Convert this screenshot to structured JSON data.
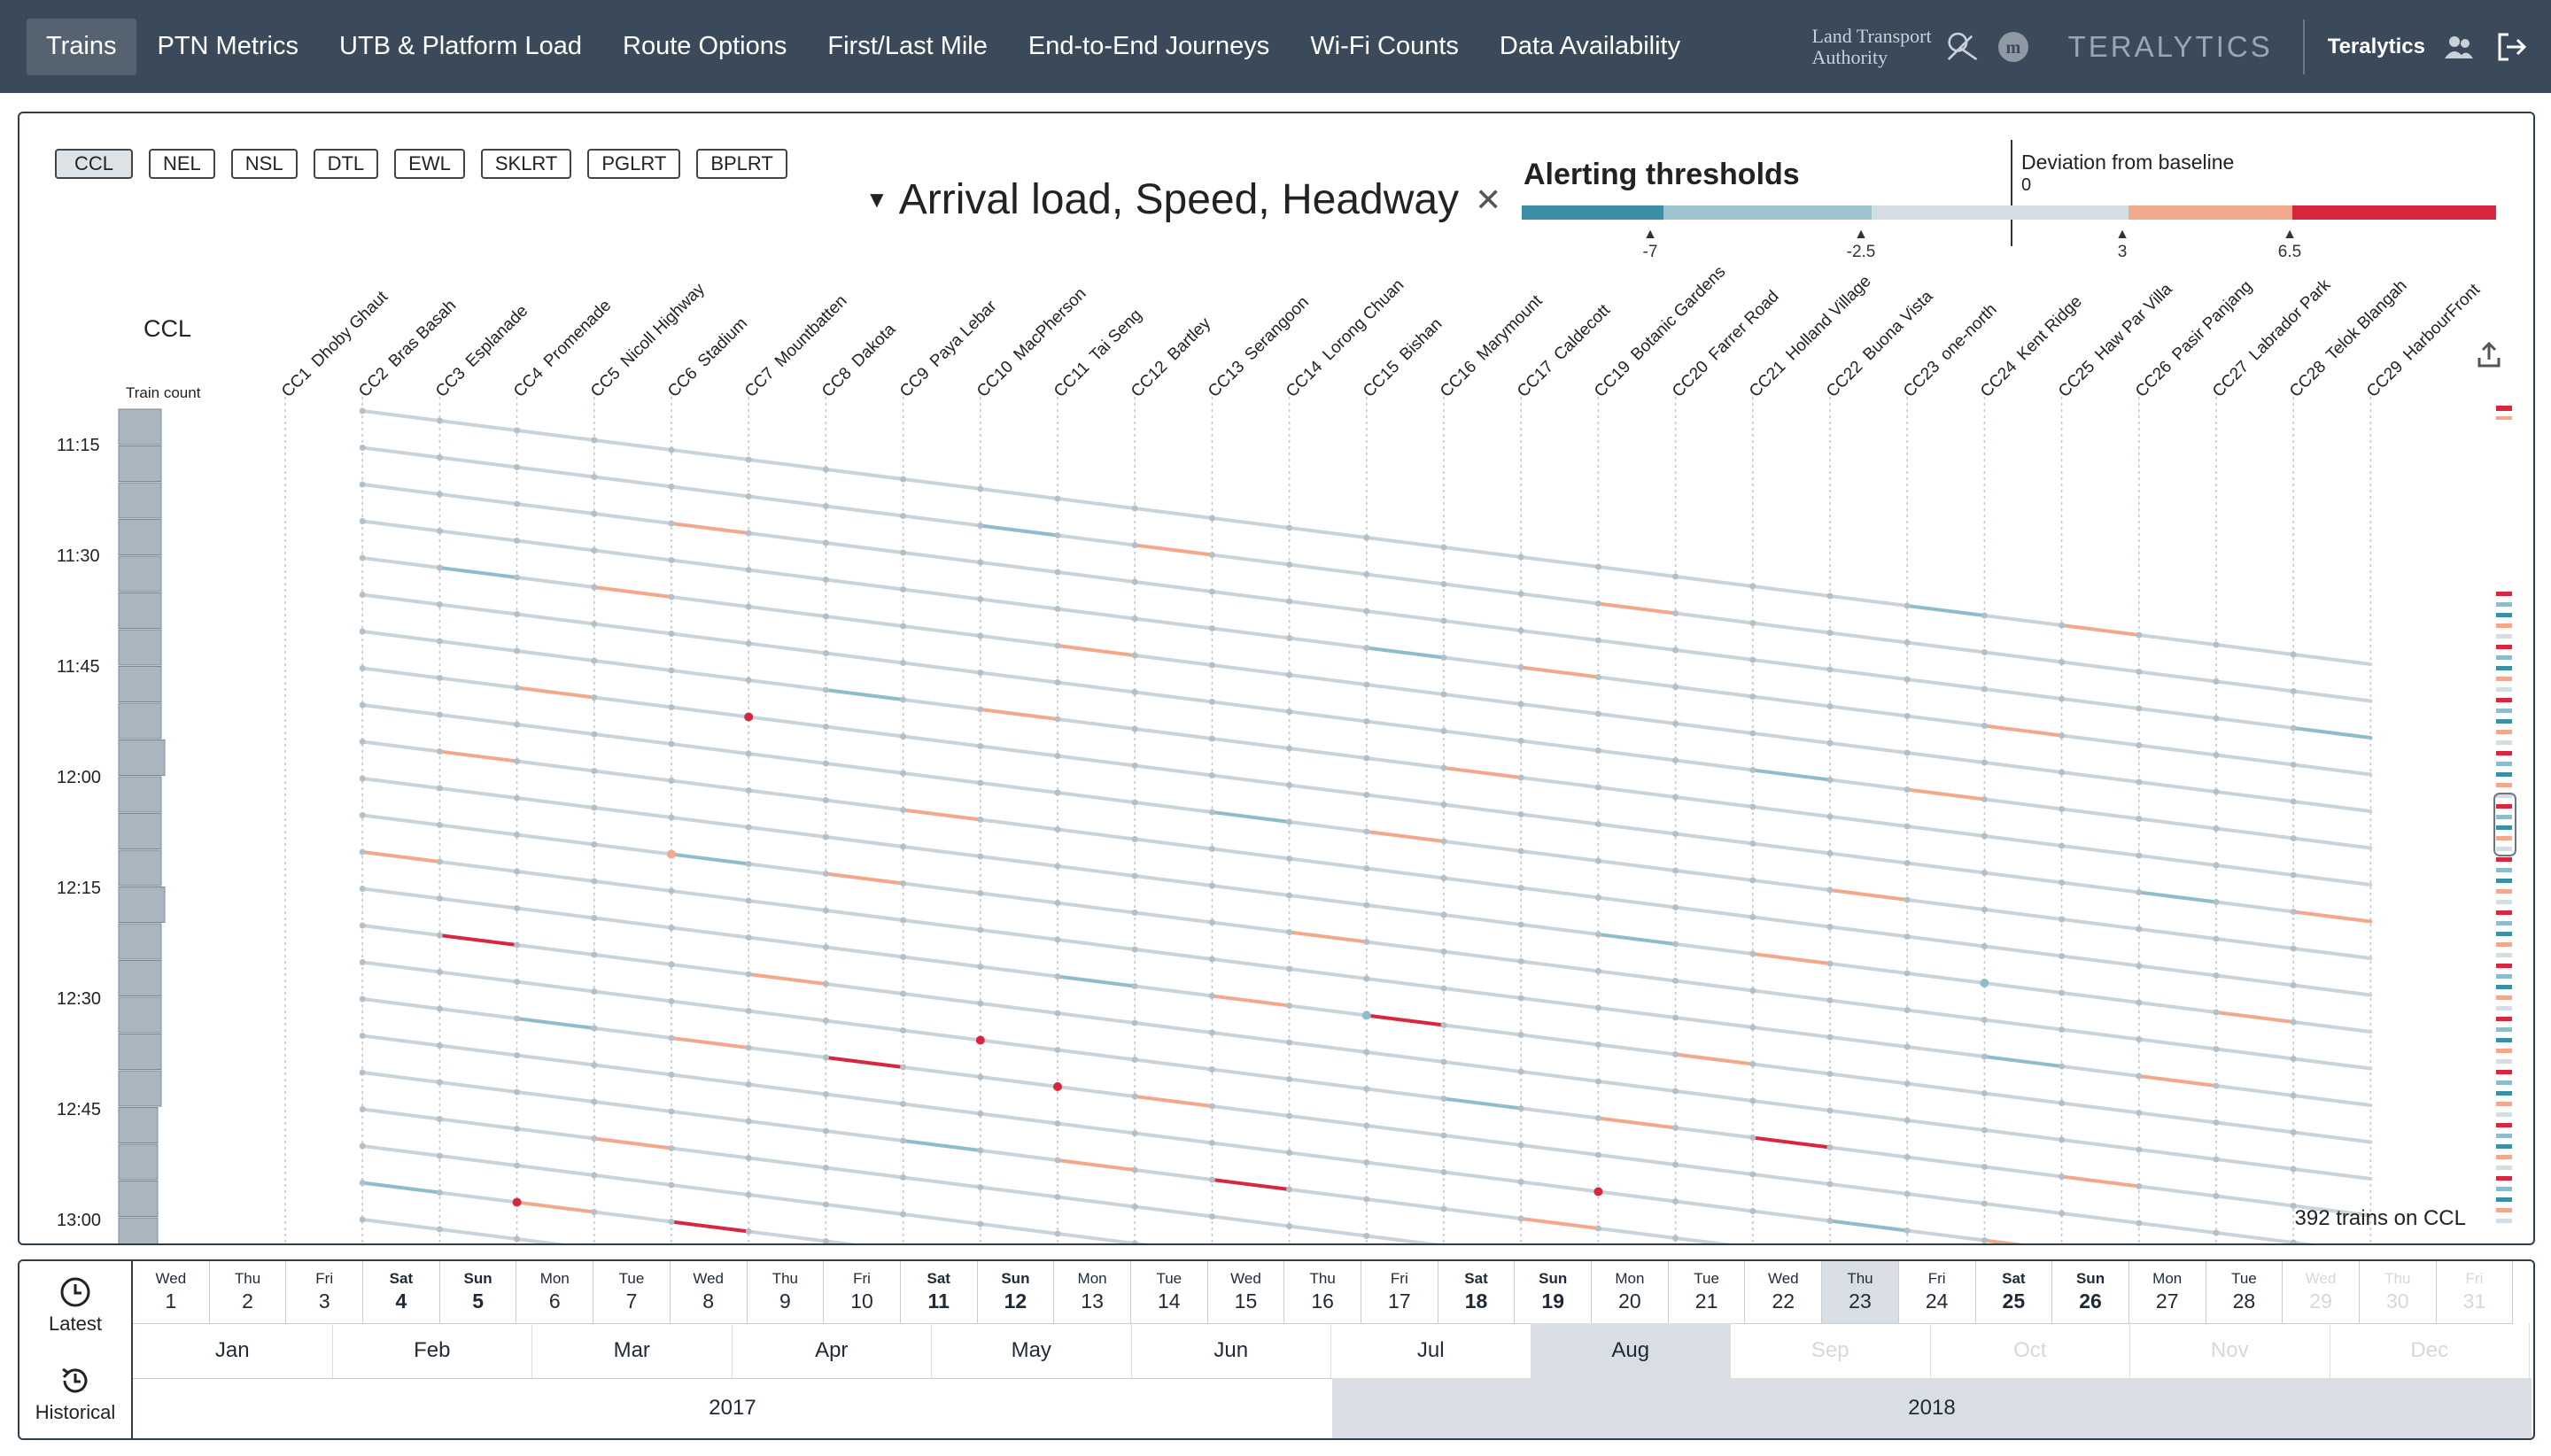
{
  "nav": {
    "tabs": [
      "Trains",
      "PTN Metrics",
      "UTB & Platform Load",
      "Route Options",
      "First/Last Mile",
      "End-to-End Journeys",
      "Wi-Fi Counts",
      "Data Availability"
    ],
    "active_tab": "Trains",
    "lta_line1": "Land Transport",
    "lta_line2": "Authority",
    "brand": "TERALYTICS",
    "user": "Teralytics"
  },
  "lines": [
    "CCL",
    "NEL",
    "NSL",
    "DTL",
    "EWL",
    "SKLRT",
    "PGLRT",
    "BPLRT"
  ],
  "active_line": "CCL",
  "metric": "Arrival load, Speed, Headway",
  "alerting": {
    "title": "Alerting thresholds",
    "deviation_title": "Deviation from baseline",
    "zero": "0",
    "marks": [
      "-7",
      "-2.5",
      "3",
      "6.5"
    ],
    "colors": [
      "#3a8ea8",
      "#9ec3cf",
      "#d5dde3",
      "#f2a88a",
      "#d7263d"
    ]
  },
  "chart": {
    "line_label": "CCL",
    "train_count_label": "Train count",
    "time_labels": [
      "11:15",
      "11:30",
      "11:45",
      "12:00",
      "12:15",
      "12:30",
      "12:45",
      "13:00"
    ],
    "stations": [
      {
        "code": "CC1",
        "name": "Dhoby Ghaut"
      },
      {
        "code": "CC2",
        "name": "Bras Basah"
      },
      {
        "code": "CC3",
        "name": "Esplanade"
      },
      {
        "code": "CC4",
        "name": "Promenade"
      },
      {
        "code": "CC5",
        "name": "Nicoll Highway"
      },
      {
        "code": "CC6",
        "name": "Stadium"
      },
      {
        "code": "CC7",
        "name": "Mountbatten"
      },
      {
        "code": "CC8",
        "name": "Dakota"
      },
      {
        "code": "CC9",
        "name": "Paya Lebar"
      },
      {
        "code": "CC10",
        "name": "MacPherson"
      },
      {
        "code": "CC11",
        "name": "Tai Seng"
      },
      {
        "code": "CC12",
        "name": "Bartley"
      },
      {
        "code": "CC13",
        "name": "Serangoon"
      },
      {
        "code": "CC14",
        "name": "Lorong Chuan"
      },
      {
        "code": "CC15",
        "name": "Bishan"
      },
      {
        "code": "CC16",
        "name": "Marymount"
      },
      {
        "code": "CC17",
        "name": "Caldecott"
      },
      {
        "code": "CC19",
        "name": "Botanic Gardens"
      },
      {
        "code": "CC20",
        "name": "Farrer Road"
      },
      {
        "code": "CC21",
        "name": "Holland Village"
      },
      {
        "code": "CC22",
        "name": "Buona Vista"
      },
      {
        "code": "CC23",
        "name": "one-north"
      },
      {
        "code": "CC24",
        "name": "Kent Ridge"
      },
      {
        "code": "CC25",
        "name": "Haw Par Villa"
      },
      {
        "code": "CC26",
        "name": "Pasir Panjang"
      },
      {
        "code": "CC27",
        "name": "Labrador Park"
      },
      {
        "code": "CC28",
        "name": "Telok Blangah"
      },
      {
        "code": "CC29",
        "name": "HarbourFront"
      }
    ],
    "trains_count_text": "392 trains on CCL"
  },
  "timeline": {
    "latest": "Latest",
    "historical": "Historical",
    "days": [
      {
        "w": "Wed",
        "n": "1"
      },
      {
        "w": "Thu",
        "n": "2"
      },
      {
        "w": "Fri",
        "n": "3"
      },
      {
        "w": "Sat",
        "n": "4"
      },
      {
        "w": "Sun",
        "n": "5"
      },
      {
        "w": "Mon",
        "n": "6"
      },
      {
        "w": "Tue",
        "n": "7"
      },
      {
        "w": "Wed",
        "n": "8"
      },
      {
        "w": "Thu",
        "n": "9"
      },
      {
        "w": "Fri",
        "n": "10"
      },
      {
        "w": "Sat",
        "n": "11"
      },
      {
        "w": "Sun",
        "n": "12"
      },
      {
        "w": "Mon",
        "n": "13"
      },
      {
        "w": "Tue",
        "n": "14"
      },
      {
        "w": "Wed",
        "n": "15"
      },
      {
        "w": "Thu",
        "n": "16"
      },
      {
        "w": "Fri",
        "n": "17"
      },
      {
        "w": "Sat",
        "n": "18"
      },
      {
        "w": "Sun",
        "n": "19"
      },
      {
        "w": "Mon",
        "n": "20"
      },
      {
        "w": "Tue",
        "n": "21"
      },
      {
        "w": "Wed",
        "n": "22"
      },
      {
        "w": "Thu",
        "n": "23"
      },
      {
        "w": "Fri",
        "n": "24"
      },
      {
        "w": "Sat",
        "n": "25"
      },
      {
        "w": "Sun",
        "n": "26"
      },
      {
        "w": "Mon",
        "n": "27"
      },
      {
        "w": "Tue",
        "n": "28"
      },
      {
        "w": "Wed",
        "n": "29"
      },
      {
        "w": "Thu",
        "n": "30"
      },
      {
        "w": "Fri",
        "n": "31"
      }
    ],
    "selected_day": "23",
    "months": [
      "Jan",
      "Feb",
      "Mar",
      "Apr",
      "May",
      "Jun",
      "Jul",
      "Aug",
      "Sep",
      "Oct",
      "Nov",
      "Dec"
    ],
    "selected_month": "Aug",
    "years": [
      "2017",
      "2018"
    ],
    "selected_year": "2018"
  }
}
